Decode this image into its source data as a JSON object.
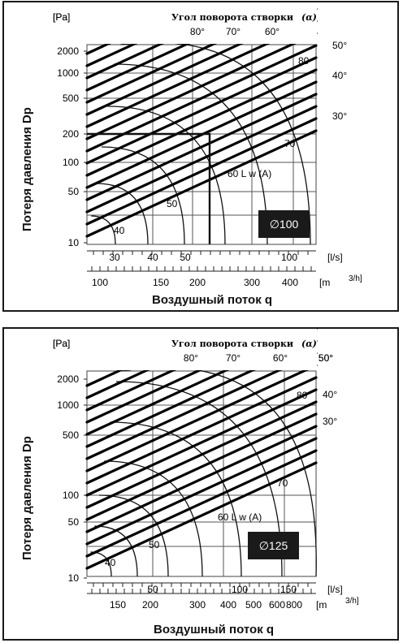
{
  "chart_data": [
    {
      "type": "line",
      "title": "",
      "diameter_label": "∅100",
      "ylabel": "Потеря давления Dp",
      "yunit": "[Pa]",
      "xlabel": "Воздушный поток q",
      "x_unit_ls": "[l/s]",
      "x_unit_m3h": "[m",
      "x_unit_m3h_sup": "3/h]",
      "angle_title": "Угол поворота створки",
      "angle_symbol": "(α)",
      "y_scale": "log",
      "ylim": [
        10,
        2500
      ],
      "xlim_ls": [
        22,
        130
      ],
      "yticks": [
        "2000",
        "1000",
        "500",
        "200",
        "100",
        "50",
        "10"
      ],
      "xticks_ls": [
        "30",
        "40",
        "50",
        "100"
      ],
      "xticks_m3h": [
        "100",
        "150",
        "200",
        "300",
        "400"
      ],
      "angle_labels_top": [
        "80°",
        "70°",
        "60°"
      ],
      "angle_labels_right": [
        "50°",
        "40°",
        "30°"
      ],
      "noise_labels": [
        "40",
        "50",
        "60 L w (A)",
        "70",
        "80"
      ],
      "sample_reading": {
        "q_ls": 56,
        "dp_pa": 190
      },
      "series": [
        {
          "name": "30°",
          "points": [
            [
              22,
              10
            ],
            [
              130,
              360
            ]
          ]
        },
        {
          "name": "40°",
          "points": [
            [
              22,
              22
            ],
            [
              130,
              800
            ]
          ]
        },
        {
          "name": "50°",
          "points": [
            [
              22,
              50
            ],
            [
              130,
              1800
            ]
          ]
        }
      ]
    },
    {
      "type": "line",
      "title": "",
      "diameter_label": "∅125",
      "ylabel": "Потеря давления Dp",
      "yunit": "[Pa]",
      "xlabel": "Воздушный поток q",
      "x_unit_ls": "[l/s]",
      "x_unit_m3h": "[m",
      "x_unit_m3h_sup": "3/h]",
      "angle_title": "Угол поворота створки",
      "angle_symbol": "(α)",
      "y_scale": "log",
      "ylim": [
        10,
        2500
      ],
      "xlim_ls": [
        38,
        200
      ],
      "yticks": [
        "2000",
        "1000",
        "500",
        "100",
        "50",
        "10"
      ],
      "xticks_ls": [
        "50",
        "100",
        "150"
      ],
      "xticks_m3h": [
        "150",
        "200",
        "300",
        "400",
        "500",
        "600",
        "800"
      ],
      "angle_labels_top": [
        "80°",
        "70°",
        "60°",
        "50°"
      ],
      "angle_labels_right": [
        "40°",
        "30°"
      ],
      "noise_labels": [
        "40",
        "50",
        "60 L w (A)",
        "70",
        "80"
      ],
      "series": [
        {
          "name": "30°",
          "points": [
            [
              38,
              10
            ],
            [
              200,
              370
            ]
          ]
        },
        {
          "name": "40°",
          "points": [
            [
              38,
              24
            ],
            [
              200,
              900
            ]
          ]
        },
        {
          "name": "50°",
          "points": [
            [
              38,
              55
            ],
            [
              200,
              2200
            ]
          ]
        }
      ]
    }
  ]
}
